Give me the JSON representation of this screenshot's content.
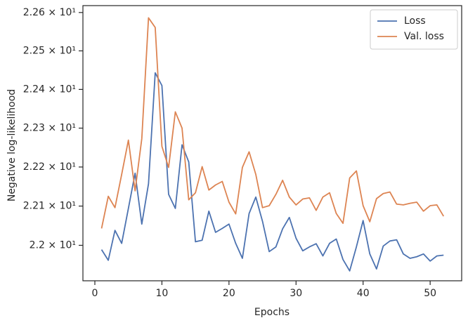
{
  "chart_data": {
    "type": "line",
    "xlabel": "Epochs",
    "ylabel": "Negative log-likelihood",
    "x": [
      1,
      2,
      3,
      4,
      5,
      6,
      7,
      8,
      9,
      10,
      11,
      12,
      13,
      14,
      15,
      16,
      17,
      18,
      19,
      20,
      21,
      22,
      23,
      24,
      25,
      26,
      27,
      28,
      29,
      30,
      31,
      32,
      33,
      34,
      35,
      36,
      37,
      38,
      39,
      40,
      41,
      42,
      43,
      44,
      45,
      46,
      47,
      48,
      49,
      50,
      51,
      52
    ],
    "series": [
      {
        "name": "Loss",
        "color": "#4c72b0",
        "values": [
          21.989,
          21.962,
          22.038,
          22.005,
          22.094,
          22.184,
          22.054,
          22.157,
          22.443,
          22.41,
          22.13,
          22.094,
          22.257,
          22.213,
          22.009,
          22.013,
          22.087,
          22.033,
          22.043,
          22.054,
          22.005,
          21.967,
          22.081,
          22.123,
          22.061,
          21.984,
          21.996,
          22.042,
          22.071,
          22.018,
          21.986,
          21.996,
          22.004,
          21.973,
          22.005,
          22.016,
          21.964,
          21.935,
          21.996,
          22.063,
          21.978,
          21.94,
          21.998,
          22.011,
          22.014,
          21.978,
          21.967,
          21.971,
          21.978,
          21.96,
          21.973,
          21.975
        ]
      },
      {
        "name": "Val. loss",
        "color": "#dd8452",
        "values": [
          22.043,
          22.125,
          22.096,
          22.181,
          22.269,
          22.139,
          22.273,
          22.586,
          22.561,
          22.253,
          22.199,
          22.342,
          22.3,
          22.116,
          22.134,
          22.201,
          22.141,
          22.154,
          22.163,
          22.11,
          22.08,
          22.199,
          22.239,
          22.181,
          22.096,
          22.101,
          22.13,
          22.166,
          22.123,
          22.103,
          22.118,
          22.121,
          22.089,
          22.123,
          22.134,
          22.081,
          22.056,
          22.172,
          22.19,
          22.101,
          22.06,
          22.119,
          22.132,
          22.136,
          22.105,
          22.103,
          22.107,
          22.11,
          22.087,
          22.101,
          22.103,
          22.074
        ]
      }
    ],
    "xlim": [
      -1.78,
      54.7
    ],
    "xticks": [
      0,
      10,
      20,
      30,
      40,
      50
    ],
    "ylim": [
      21.91,
      22.618
    ],
    "yscale": "log",
    "yticks": [
      {
        "value": 22.0,
        "label": "2.2 × 10¹"
      },
      {
        "value": 22.1,
        "label": "2.21 × 10¹"
      },
      {
        "value": 22.2,
        "label": "2.22 × 10¹"
      },
      {
        "value": 22.3,
        "label": "2.23 × 10¹"
      },
      {
        "value": 22.4,
        "label": "2.24 × 10¹"
      },
      {
        "value": 22.5,
        "label": "2.25 × 10¹"
      },
      {
        "value": 22.6,
        "label": "2.26 × 10¹"
      }
    ],
    "legend": "upper right"
  }
}
